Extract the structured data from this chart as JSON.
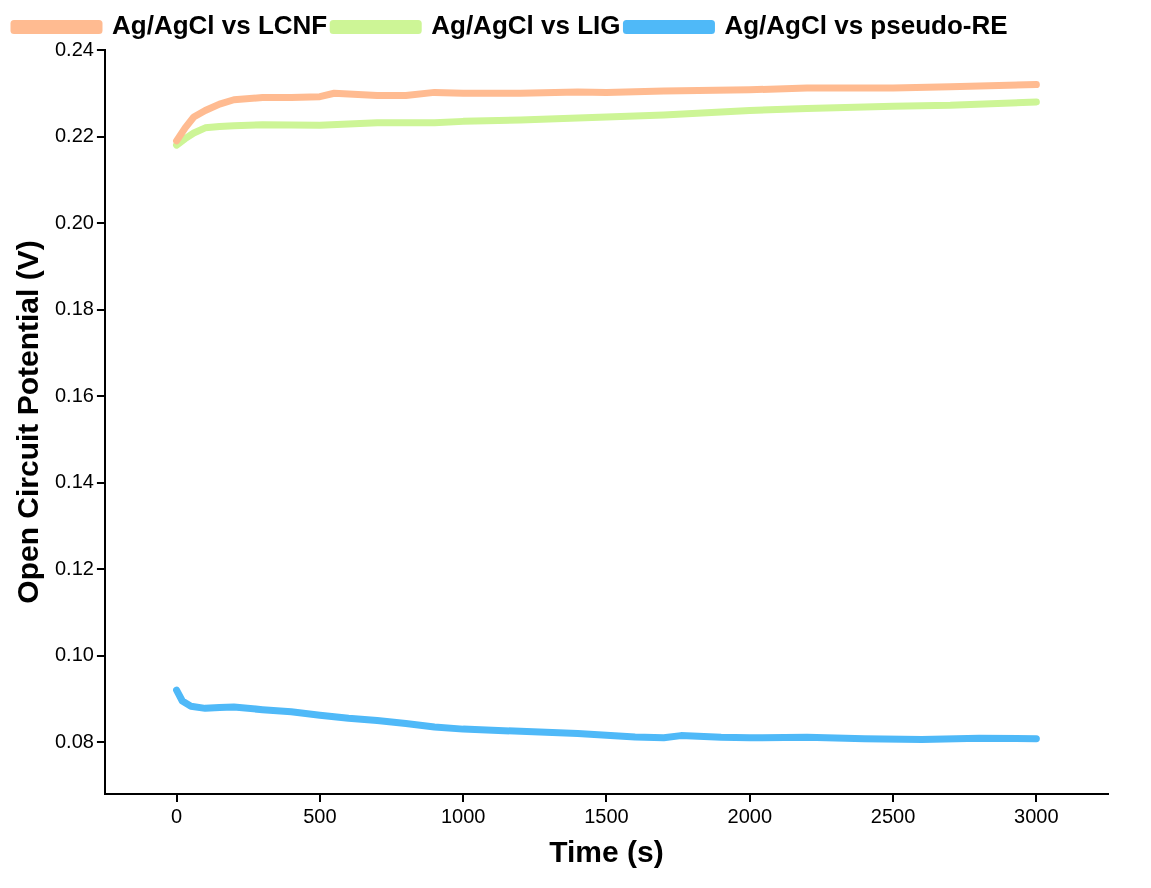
{
  "chart_data": {
    "type": "line",
    "xlabel": "Time (s)",
    "ylabel": "Open Circuit Potential (V)",
    "xlim": [
      -250,
      3250
    ],
    "xticks": [
      0,
      500,
      1000,
      1500,
      2000,
      2500,
      3000
    ],
    "ylim": [
      0.068,
      0.24
    ],
    "yticks": [
      0.08,
      {
        "value": 0.1,
        "label": "0.10"
      },
      0.12,
      0.14,
      0.16,
      0.18,
      {
        "value": 0.2,
        "label": "0.20"
      },
      0.22,
      0.24
    ],
    "legend": "top",
    "grid": false,
    "marker": "none",
    "line_style": "solid",
    "series": [
      {
        "name": "Ag/AgCl vs LCNF",
        "color": "#ffbb91",
        "x": [
          0,
          30,
          60,
          100,
          150,
          200,
          300,
          400,
          500,
          550,
          700,
          800,
          900,
          1000,
          1200,
          1400,
          1500,
          1700,
          2000,
          2200,
          2500,
          2700,
          3000
        ],
        "values": [
          0.219,
          0.222,
          0.2245,
          0.226,
          0.2275,
          0.2285,
          0.229,
          0.229,
          0.2292,
          0.23,
          0.2295,
          0.2295,
          0.2302,
          0.23,
          0.23,
          0.2303,
          0.2302,
          0.2305,
          0.2308,
          0.2312,
          0.2312,
          0.2315,
          0.232
        ]
      },
      {
        "name": "Ag/AgCl vs LIG",
        "color": "#cdf596",
        "x": [
          0,
          30,
          60,
          100,
          150,
          200,
          300,
          500,
          700,
          900,
          1000,
          1200,
          1500,
          1700,
          2000,
          2200,
          2500,
          2700,
          3000
        ],
        "values": [
          0.218,
          0.2195,
          0.2208,
          0.222,
          0.2223,
          0.2225,
          0.2227,
          0.2226,
          0.2232,
          0.2232,
          0.2235,
          0.2238,
          0.2245,
          0.225,
          0.226,
          0.2265,
          0.227,
          0.2272,
          0.228
        ]
      },
      {
        "name": "Ag/AgCl vs pseudo-RE",
        "color": "#4fb9f8",
        "x": [
          0,
          20,
          50,
          100,
          150,
          200,
          300,
          400,
          500,
          600,
          700,
          800,
          900,
          1000,
          1200,
          1400,
          1600,
          1700,
          1760,
          1900,
          2000,
          2200,
          2400,
          2600,
          2800,
          3000
        ],
        "values": [
          0.092,
          0.0895,
          0.0883,
          0.0878,
          0.088,
          0.0881,
          0.0875,
          0.087,
          0.0862,
          0.0855,
          0.085,
          0.0843,
          0.0835,
          0.083,
          0.0825,
          0.082,
          0.0812,
          0.081,
          0.0815,
          0.0811,
          0.081,
          0.0811,
          0.0808,
          0.0806,
          0.0809,
          0.0808
        ]
      }
    ]
  }
}
